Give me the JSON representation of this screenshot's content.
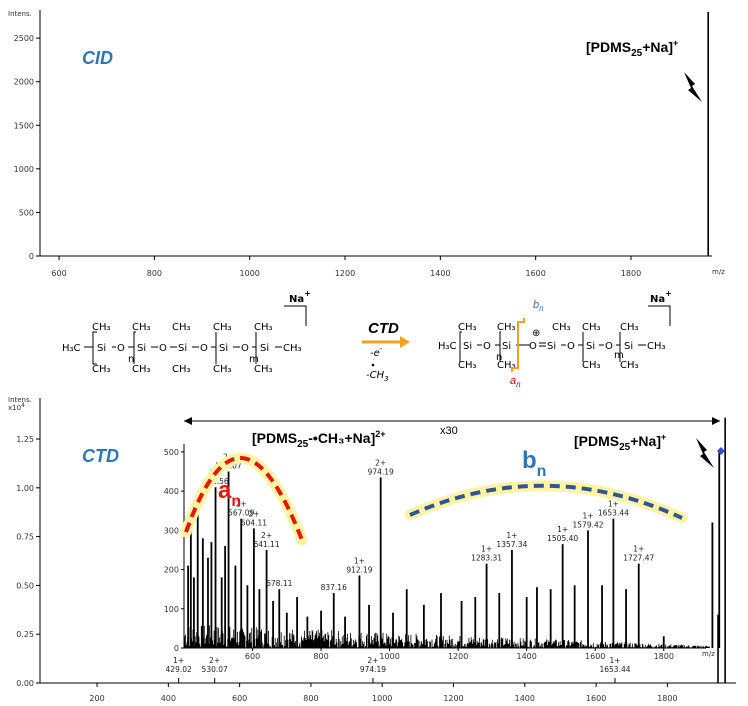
{
  "chart_data": [
    {
      "type": "bar",
      "name": "cid",
      "panel_tag": "CID",
      "ylabel": "Intens.",
      "xlabel": "m/z",
      "xlim": [
        560,
        1970
      ],
      "ylim": [
        0,
        2800
      ],
      "xticks": [
        600,
        800,
        1000,
        1200,
        1400,
        1600,
        1800
      ],
      "yticks": [
        0,
        500,
        1000,
        1500,
        2000,
        2500
      ],
      "peaks": [
        {
          "x": 1962,
          "y": 2800
        }
      ],
      "annotation": {
        "base": "[PDMS",
        "sub": "25",
        "tail": "+Na]",
        "sup": "+"
      }
    },
    {
      "type": "bar",
      "name": "ctd",
      "panel_tag": "CTD",
      "ylabel": "Intens.",
      "ylabel_exp": "x10",
      "ylabel_exp_sup": "4",
      "xlabel": "m/z",
      "xlim": [
        40,
        1970
      ],
      "ylim": [
        0,
        1.45
      ],
      "xticks": [
        200,
        400,
        600,
        800,
        1000,
        1200,
        1400,
        1600,
        1800
      ],
      "yticks": [
        "0.00",
        "0.25",
        "0.50",
        "0.75",
        "1.00",
        "1.25"
      ],
      "ytick_values": [
        0,
        0.25,
        0.5,
        0.75,
        1.0,
        1.25
      ],
      "peaks": [
        {
          "x": 1962,
          "y": 1.36
        },
        {
          "x": 1942,
          "y": 0.35
        }
      ],
      "baseline_peaks": [
        {
          "x": 429,
          "y": 0.006
        },
        {
          "x": 530,
          "y": 0.005
        },
        {
          "x": 974,
          "y": 0.009
        },
        {
          "x": 1653,
          "y": 0.006
        }
      ],
      "baseline_labels": [
        {
          "x": 429,
          "charge": "1+",
          "mz": "429.02"
        },
        {
          "x": 530,
          "charge": "2+",
          "mz": "530.07"
        },
        {
          "x": 974,
          "charge": "2+",
          "mz": "974.19"
        },
        {
          "x": 1653,
          "charge": "1+",
          "mz": "1653.44"
        }
      ],
      "scale_label": "x30",
      "annotation_main": {
        "base": "[PDMS",
        "sub": "25",
        "tail": "+Na]",
        "sup": "+"
      },
      "annotation_radical": {
        "base": "[PDMS",
        "sub": "25",
        "tail": "-•CH₃+Na]",
        "sup": "2+"
      },
      "a_series": {
        "letter": "a",
        "sub": "n"
      },
      "b_series": {
        "letter": "b",
        "sub": "n"
      }
    },
    {
      "type": "bar",
      "name": "ctd-inset",
      "xlim": [
        400,
        1970
      ],
      "ylim": [
        0,
        510
      ],
      "xlabel": "m/z",
      "xticks": [
        600,
        800,
        1000,
        1200,
        1400,
        1600,
        1800
      ],
      "yticks": [
        0,
        100,
        200,
        300,
        400,
        500
      ],
      "peaks": [
        {
          "x": 412,
          "y": 210
        },
        {
          "x": 420,
          "y": 300
        },
        {
          "x": 429,
          "y": 180
        },
        {
          "x": 440,
          "y": 390
        },
        {
          "x": 455,
          "y": 280
        },
        {
          "x": 470,
          "y": 230
        },
        {
          "x": 480,
          "y": 270
        },
        {
          "x": 492,
          "y": 410
        },
        {
          "x": 510,
          "y": 180
        },
        {
          "x": 520,
          "y": 260
        },
        {
          "x": 530,
          "y": 450
        },
        {
          "x": 550,
          "y": 210
        },
        {
          "x": 567,
          "y": 330
        },
        {
          "x": 585,
          "y": 160
        },
        {
          "x": 604,
          "y": 305
        },
        {
          "x": 620,
          "y": 150
        },
        {
          "x": 641,
          "y": 250
        },
        {
          "x": 660,
          "y": 120
        },
        {
          "x": 678,
          "y": 150
        },
        {
          "x": 700,
          "y": 90
        },
        {
          "x": 730,
          "y": 130
        },
        {
          "x": 760,
          "y": 80
        },
        {
          "x": 800,
          "y": 95
        },
        {
          "x": 837,
          "y": 140
        },
        {
          "x": 870,
          "y": 80
        },
        {
          "x": 912,
          "y": 185
        },
        {
          "x": 940,
          "y": 110
        },
        {
          "x": 974,
          "y": 435
        },
        {
          "x": 1010,
          "y": 90
        },
        {
          "x": 1050,
          "y": 150
        },
        {
          "x": 1100,
          "y": 110
        },
        {
          "x": 1150,
          "y": 140
        },
        {
          "x": 1210,
          "y": 120
        },
        {
          "x": 1250,
          "y": 130
        },
        {
          "x": 1283,
          "y": 215
        },
        {
          "x": 1320,
          "y": 140
        },
        {
          "x": 1357,
          "y": 250
        },
        {
          "x": 1400,
          "y": 130
        },
        {
          "x": 1430,
          "y": 155
        },
        {
          "x": 1470,
          "y": 150
        },
        {
          "x": 1505,
          "y": 265
        },
        {
          "x": 1540,
          "y": 160
        },
        {
          "x": 1579,
          "y": 300
        },
        {
          "x": 1620,
          "y": 160
        },
        {
          "x": 1653,
          "y": 330
        },
        {
          "x": 1690,
          "y": 150
        },
        {
          "x": 1727,
          "y": 215
        },
        {
          "x": 1800,
          "y": 30
        },
        {
          "x": 1942,
          "y": 320
        },
        {
          "x": 1962,
          "y": 505
        }
      ],
      "peak_labels": [
        {
          "x": 492,
          "y": 410,
          "charge": "2+",
          "mz": "492.56"
        },
        {
          "x": 530,
          "y": 450,
          "charge": "2+",
          "mz": "530.07"
        },
        {
          "x": 567,
          "y": 330,
          "charge": "2+",
          "mz": "567.09"
        },
        {
          "x": 604,
          "y": 305,
          "charge": "2+",
          "mz": "604.11"
        },
        {
          "x": 641,
          "y": 250,
          "charge": "2+",
          "mz": "641.11"
        },
        {
          "x": 678,
          "y": 150,
          "charge": "",
          "mz": "678.11"
        },
        {
          "x": 837,
          "y": 140,
          "charge": "",
          "mz": "837.16"
        },
        {
          "x": 912,
          "y": 185,
          "charge": "1+",
          "mz": "912.19"
        },
        {
          "x": 974,
          "y": 435,
          "charge": "2+",
          "mz": "974.19"
        },
        {
          "x": 1283,
          "y": 215,
          "charge": "1+",
          "mz": "1283.31"
        },
        {
          "x": 1357,
          "y": 250,
          "charge": "1+",
          "mz": "1357.34"
        },
        {
          "x": 1505,
          "y": 265,
          "charge": "1+",
          "mz": "1505.40"
        },
        {
          "x": 1579,
          "y": 300,
          "charge": "1+",
          "mz": "1579.42"
        },
        {
          "x": 1653,
          "y": 330,
          "charge": "1+",
          "mz": "1653.44"
        },
        {
          "x": 1727,
          "y": 215,
          "charge": "1+",
          "mz": "1727.47"
        }
      ]
    }
  ],
  "scheme": {
    "label": "CTD",
    "arrow_top": "-e",
    "arrow_top_sup": "-",
    "arrow_bottom": "-CH",
    "arrow_bottom_sub": "3",
    "na": "Na",
    "na_sup": "+",
    "left": {
      "end_left": "H₃C",
      "end_right": "CH₃",
      "ch3": "CH₃",
      "si": "Si",
      "o": "O",
      "n": "n",
      "m": "m"
    },
    "right": {
      "end_left": "H₃C",
      "end_right": "CH₃",
      "ch3": "CH₃",
      "si": "Si",
      "o": "O",
      "n": "n",
      "m": "m",
      "plus": "⊕",
      "a": "a",
      "b": "b",
      "nsub": "n"
    }
  }
}
